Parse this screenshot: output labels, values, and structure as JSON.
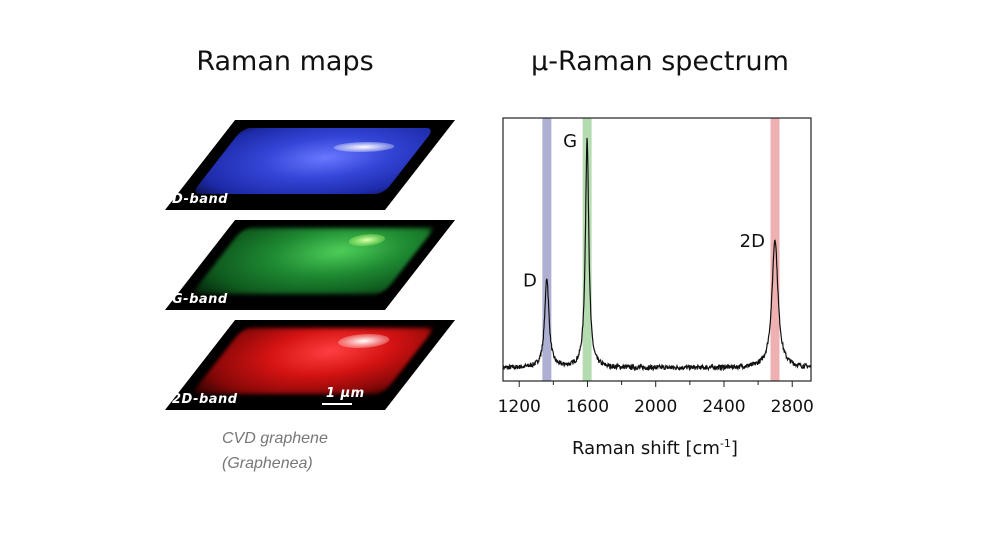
{
  "left_panel": {
    "title": "Raman maps",
    "maps": [
      {
        "label": "D-band",
        "color": "#2b3fd6"
      },
      {
        "label": "G-band",
        "color": "#1f9a3a"
      },
      {
        "label": "2D-band",
        "color": "#e01515"
      }
    ],
    "scale_bar": "1 µm",
    "caption_line1": "CVD graphene",
    "caption_line2": "(Graphenea)"
  },
  "right_panel": {
    "title": "µ-Raman spectrum"
  },
  "chart_data": {
    "type": "line",
    "xlabel": "Raman shift [cm",
    "xlabel_sup": "-1",
    "xlabel_end": "]",
    "ylabel": "",
    "xlim": [
      1105,
      2910
    ],
    "ylim": [
      0,
      1
    ],
    "xticks": [
      1200,
      1600,
      2000,
      2400,
      2800
    ],
    "minor_xticks": [
      1400,
      1800,
      2200,
      2600
    ],
    "baseline": 0.05,
    "peaks": [
      {
        "label": "D",
        "position": 1362,
        "height": 0.39,
        "fwhm": 30,
        "band_color": "#aeb0d3"
      },
      {
        "label": "G",
        "position": 1598,
        "height": 0.92,
        "fwhm": 24,
        "band_color": "#b5dcb0"
      },
      {
        "label": "2D",
        "position": 2699,
        "height": 0.54,
        "fwhm": 42,
        "band_color": "#eeb0b0"
      }
    ],
    "line_color": "#111111",
    "grid": false,
    "legend": "none"
  }
}
